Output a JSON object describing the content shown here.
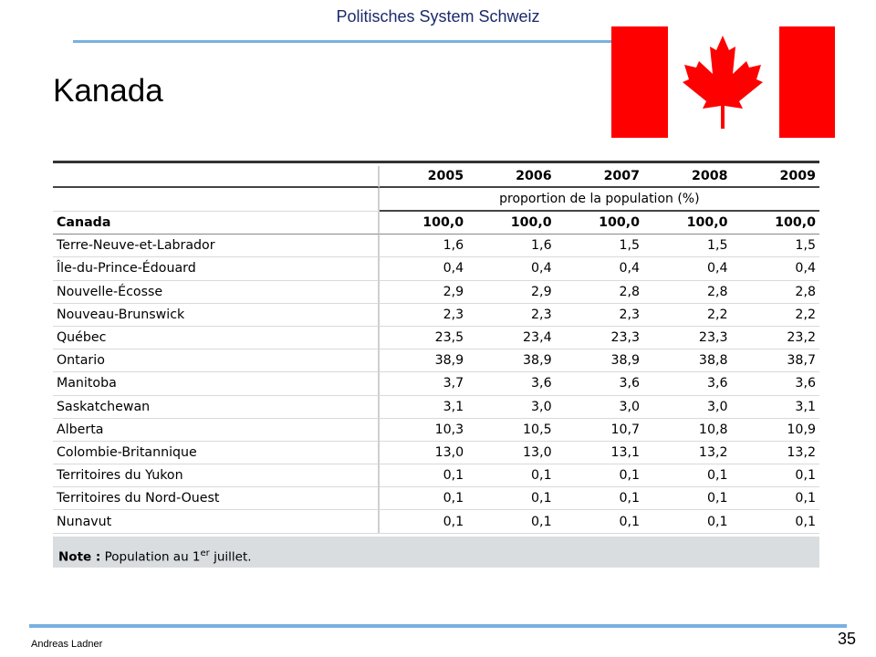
{
  "header": {
    "title": "Politisches System Schweiz"
  },
  "slide": {
    "title": "Kanada"
  },
  "flag": {
    "name": "canada-flag",
    "red": "#ff0000",
    "white": "#ffffff"
  },
  "table": {
    "years": [
      "2005",
      "2006",
      "2007",
      "2008",
      "2009"
    ],
    "unit_label": "proportion de la population (%)",
    "rows": [
      {
        "name": "Canada",
        "values": [
          "100,0",
          "100,0",
          "100,0",
          "100,0",
          "100,0"
        ]
      },
      {
        "name": "Terre-Neuve-et-Labrador",
        "values": [
          "1,6",
          "1,6",
          "1,5",
          "1,5",
          "1,5"
        ]
      },
      {
        "name": "Île-du-Prince-Édouard",
        "values": [
          "0,4",
          "0,4",
          "0,4",
          "0,4",
          "0,4"
        ]
      },
      {
        "name": "Nouvelle-Écosse",
        "values": [
          "2,9",
          "2,9",
          "2,8",
          "2,8",
          "2,8"
        ]
      },
      {
        "name": "Nouveau-Brunswick",
        "values": [
          "2,3",
          "2,3",
          "2,3",
          "2,2",
          "2,2"
        ]
      },
      {
        "name": "Québec",
        "values": [
          "23,5",
          "23,4",
          "23,3",
          "23,3",
          "23,2"
        ]
      },
      {
        "name": "Ontario",
        "values": [
          "38,9",
          "38,9",
          "38,9",
          "38,8",
          "38,7"
        ]
      },
      {
        "name": "Manitoba",
        "values": [
          "3,7",
          "3,6",
          "3,6",
          "3,6",
          "3,6"
        ]
      },
      {
        "name": "Saskatchewan",
        "values": [
          "3,1",
          "3,0",
          "3,0",
          "3,0",
          "3,1"
        ]
      },
      {
        "name": "Alberta",
        "values": [
          "10,3",
          "10,5",
          "10,7",
          "10,8",
          "10,9"
        ]
      },
      {
        "name": "Colombie-Britannique",
        "values": [
          "13,0",
          "13,0",
          "13,1",
          "13,2",
          "13,2"
        ]
      },
      {
        "name": "Territoires du Yukon",
        "values": [
          "0,1",
          "0,1",
          "0,1",
          "0,1",
          "0,1"
        ]
      },
      {
        "name": "Territoires du Nord-Ouest",
        "values": [
          "0,1",
          "0,1",
          "0,1",
          "0,1",
          "0,1"
        ]
      },
      {
        "name": "Nunavut",
        "values": [
          "0,1",
          "0,1",
          "0,1",
          "0,1",
          "0,1"
        ]
      }
    ],
    "note_label": "Note :",
    "note_text": "Population au 1",
    "note_sup": "er",
    "note_tail": "juillet."
  },
  "footer": {
    "author": "Andreas Ladner",
    "page_number": "35"
  }
}
